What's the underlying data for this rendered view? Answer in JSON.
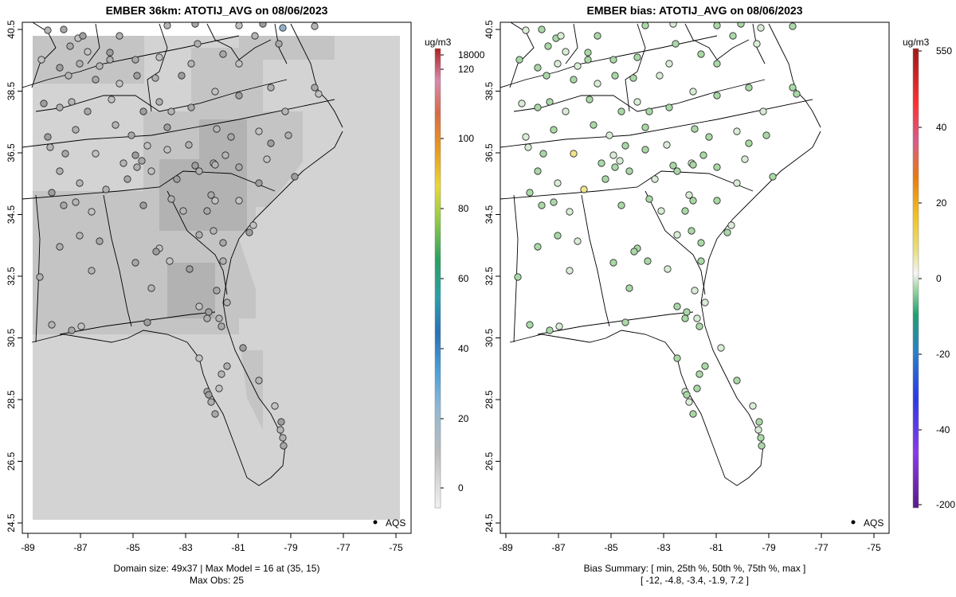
{
  "left_panel": {
    "title": "EMBER 36km: ATOTIJ_AVG on 08/06/2023",
    "caption_line1": "Domain size: 49x37 | Max Model = 16 at (35, 15)",
    "caption_line2": "Max Obs: 25",
    "legend_label": "AQS",
    "colorbar_unit": "ug/m3",
    "colorbar_ticks": [
      "18000",
      "120",
      "100",
      "80",
      "60",
      "40",
      "20",
      "0"
    ]
  },
  "right_panel": {
    "title": "EMBER bias: ATOTIJ_AVG on 08/06/2023",
    "caption_line1": "Bias Summary: [ min, 25th %, 50th %, 75th %, max ]",
    "caption_line2": "[ -12,   -4.8,   -3.4,   -1.9,   7.2 ]",
    "legend_label": "AQS",
    "colorbar_unit": "ug/m3",
    "colorbar_ticks": [
      "550",
      "40",
      "20",
      "0",
      "-20",
      "-40",
      "-200"
    ]
  },
  "axes": {
    "x_ticks": [
      "-89",
      "-87",
      "-85",
      "-83",
      "-81",
      "-79",
      "-77",
      "-75"
    ],
    "y_ticks": [
      "40.5",
      "38.5",
      "36.5",
      "34.5",
      "32.5",
      "30.5",
      "28.5",
      "26.5",
      "24.5"
    ]
  },
  "colors": {
    "grid_light": "#d3d3d3",
    "grid_mid": "#c4c4c4",
    "grid_dark": "#b2b2b2",
    "bias_neutral": "#d9ecd6",
    "bias_green": "#a9d8a6",
    "bias_yellow": "#f1e58a"
  }
}
